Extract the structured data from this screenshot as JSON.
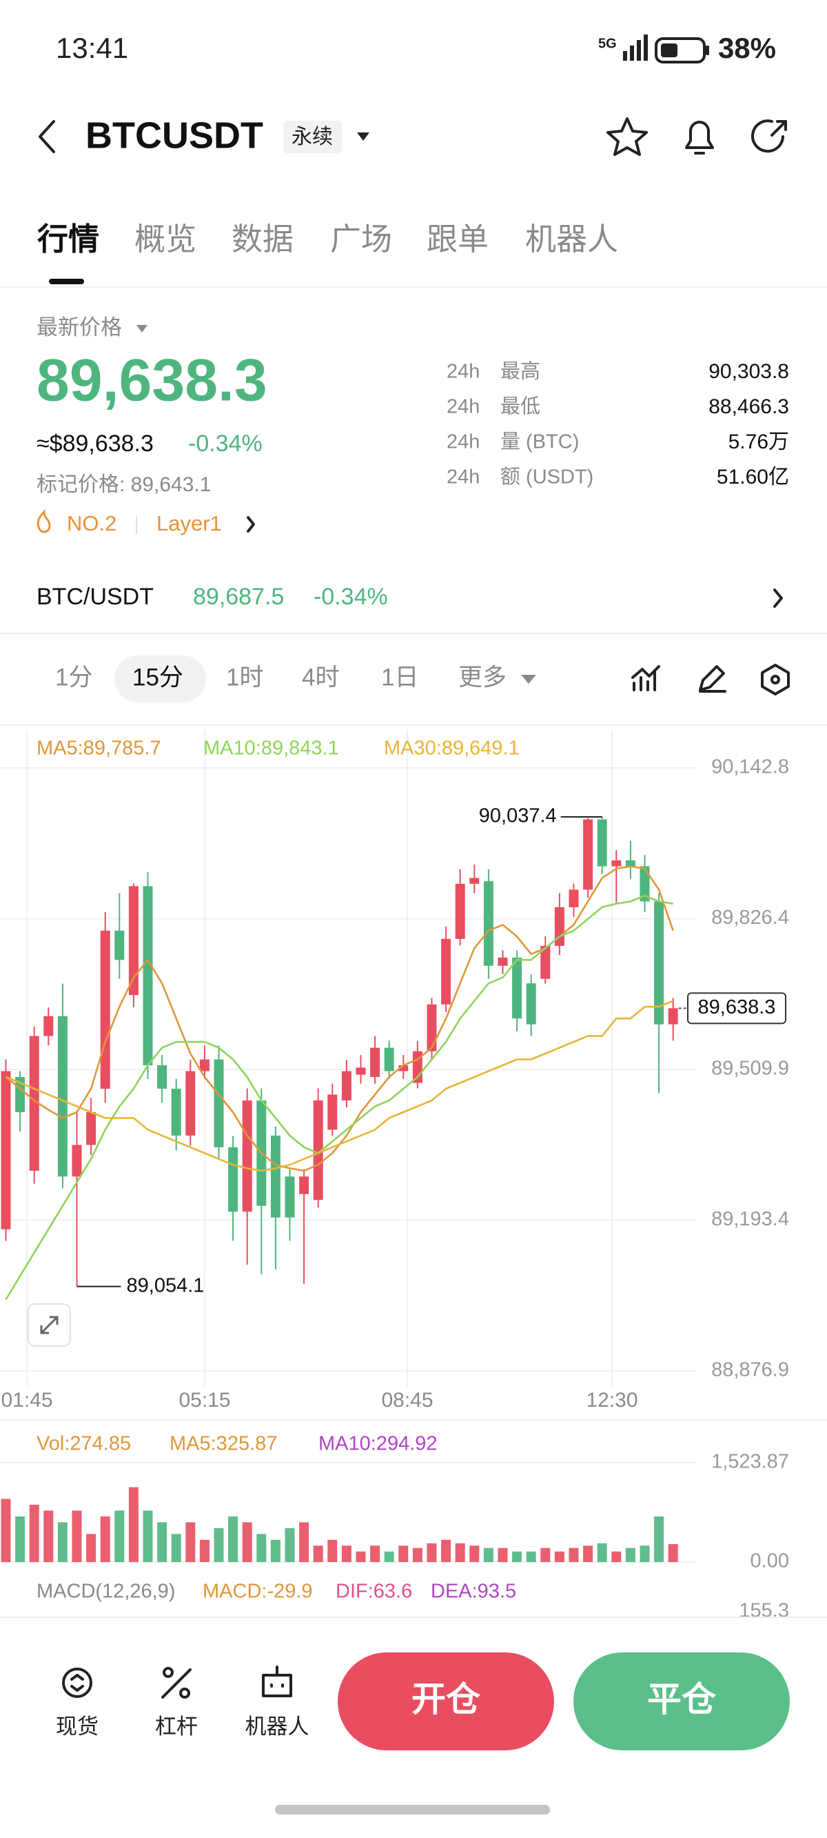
{
  "status_bar": {
    "time": "13:41",
    "battery": "38%"
  },
  "header": {
    "symbol": "BTCUSDT",
    "badge": "永续"
  },
  "tabs": [
    "行情",
    "概览",
    "数据",
    "广场",
    "跟单",
    "机器人"
  ],
  "price": {
    "label": "最新价格",
    "last": "89,638.3",
    "usd": "≈$89,638.3",
    "change": "-0.34%",
    "mark": "标记价格: 89,643.1",
    "rank": "NO.2",
    "tag": "Layer1"
  },
  "stats": [
    {
      "period": "24h",
      "label": "最高",
      "value": "90,303.8"
    },
    {
      "period": "24h",
      "label": "最低",
      "value": "88,466.3"
    },
    {
      "period": "24h",
      "label": "量 (BTC)",
      "value": "5.76万"
    },
    {
      "period": "24h",
      "label": "额 (USDT)",
      "value": "51.60亿"
    }
  ],
  "spot": {
    "pair": "BTC/USDT",
    "price": "89,687.5",
    "change": "-0.34%"
  },
  "intervals": [
    "1分",
    "15分",
    "1时",
    "4时",
    "1日",
    "更多"
  ],
  "chart_data": {
    "type": "candlestick",
    "up_color": "#e84e60",
    "down_color": "#4fb57f",
    "open": [
      89174.3,
      89493.9,
      89297.2,
      89579.9,
      89621.7,
      89285,
      89351.3,
      89469.3,
      89801.1,
      89665.9,
      89894.5,
      89518.5,
      89469.3,
      89371,
      89506.2,
      89530.8,
      89346.4,
      89211.2,
      89444.7,
      89371,
      89285,
      89248.1,
      89235.8,
      89383.3,
      89444.7,
      89498.8,
      89493.9,
      89555.3,
      89506.2,
      89481.6,
      89548,
      89646.3,
      89783.9,
      89899.5,
      89905,
      89727.4,
      89744.6,
      89690.5,
      89700,
      89769.2,
      89850.3,
      89887.2,
      90034.6,
      89936.3,
      89948.6,
      89936.3,
      89862.6,
      89604.5
    ],
    "high": [
      89530.8,
      89506.2,
      89600,
      89640,
      89690,
      89420,
      89450,
      89840,
      89880,
      89900,
      89924,
      89540,
      89490,
      89530,
      89560,
      89560,
      89370,
      89470,
      89470,
      89390,
      89300,
      89300,
      89470,
      89480,
      89530,
      89540,
      89580,
      89570,
      89540,
      89570,
      89660,
      89810,
      89930,
      89940,
      89930,
      89760,
      89760,
      89710,
      89790,
      89880,
      89900,
      90037.4,
      90040,
      89970,
      89990,
      89960,
      89880,
      89660
    ],
    "low": [
      89150,
      89380,
      89270,
      89560,
      89260,
      89054.1,
      89330,
      89440,
      89700,
      89640,
      89490,
      89440,
      89340,
      89350,
      89490,
      89320,
      89150,
      89100,
      89080,
      89090,
      89150,
      89060,
      89220,
      89370,
      89430,
      89480,
      89480,
      89490,
      89490,
      89470,
      89530,
      89630,
      89770,
      89880,
      89700,
      89710,
      89590,
      89580,
      89690,
      89750,
      89830,
      89870,
      89920,
      89860,
      89910,
      89840,
      89460,
      89570
    ],
    "close": [
      89506.2,
      89420.1,
      89579.9,
      89621.7,
      89285,
      89351.3,
      89420.1,
      89801.1,
      89739.7,
      89894.5,
      89518.5,
      89469.3,
      89371,
      89506.2,
      89530.8,
      89346.4,
      89211.2,
      89444.7,
      89223.5,
      89198.9,
      89198.9,
      89285,
      89444.7,
      89457,
      89506.2,
      89513.6,
      89555.3,
      89506.2,
      89518.5,
      89548,
      89646.3,
      89783.9,
      89899.5,
      89911.7,
      89727.4,
      89744.6,
      89616.8,
      89604.5,
      89769.2,
      89850.3,
      89887.2,
      90034.6,
      89936.3,
      89948.6,
      89936.3,
      89862.6,
      89604.5,
      89638.3
    ],
    "series": [
      {
        "name": "MA5:89,785.7",
        "color": "#e0963a",
        "values": [
          89493.9,
          89469.3,
          89444.7,
          89425,
          89407.9,
          89420.1,
          89469.3,
          89567.6,
          89641.4,
          89702.8,
          89739.7,
          89690.5,
          89616.8,
          89543,
          89493.9,
          89457,
          89420.1,
          89371,
          89334.1,
          89309.5,
          89302.1,
          89297.2,
          89309.5,
          89334.1,
          89371,
          89420.1,
          89457,
          89493.9,
          89518.5,
          89530.8,
          89555.3,
          89616.8,
          89690.5,
          89764.3,
          89801.1,
          89813.4,
          89788.8,
          89752,
          89764.3,
          89788.8,
          89813.4,
          89862.6,
          89911.7,
          89931.4,
          89936.3,
          89931.4,
          89887.2,
          89801.1
        ]
      },
      {
        "name": "MA10:89,843.1",
        "color": "#8fd45a",
        "values": [
          89026.7,
          89076,
          89125.2,
          89174.3,
          89223.5,
          89272.7,
          89321.8,
          89383.3,
          89432.4,
          89469.3,
          89518.5,
          89555.3,
          89567.6,
          89567.6,
          89567.6,
          89555.3,
          89530.8,
          89493.9,
          89444.7,
          89407.9,
          89371,
          89346.4,
          89334.1,
          89358.7,
          89383.3,
          89407.9,
          89432.4,
          89444.7,
          89469.3,
          89493.9,
          89530.8,
          89567.6,
          89616.8,
          89653.7,
          89690.5,
          89702.8,
          89739.7,
          89739.7,
          89764.3,
          89788.8,
          89801.1,
          89825.7,
          89850.3,
          89857.7,
          89862.6,
          89874.9,
          89862.6,
          89857.7
        ]
      },
      {
        "name": "MA30:89,649.1",
        "color": "#e8b535",
        "values": [
          89493.9,
          89481.6,
          89469.3,
          89457,
          89444.7,
          89432.4,
          89420.1,
          89407.9,
          89407.9,
          89407.9,
          89383.3,
          89371,
          89358.7,
          89346.4,
          89334.1,
          89321.8,
          89309.5,
          89302.1,
          89297.2,
          89302.1,
          89309.5,
          89321.8,
          89334.1,
          89346.4,
          89358.7,
          89371,
          89383.3,
          89407.9,
          89420.1,
          89432.4,
          89444.7,
          89469.3,
          89481.6,
          89493.9,
          89506.2,
          89518.5,
          89530.8,
          89530.8,
          89543,
          89555.3,
          89567.6,
          89579.9,
          89579.9,
          89616.8,
          89616.8,
          89641.4,
          89641.4,
          89653.7
        ]
      }
    ],
    "ylim": [
      88876.9,
      90142.8
    ],
    "yticks": [
      {
        "value": 90142.8,
        "label": "90,142.8"
      },
      {
        "value": 89826.4,
        "label": "89,826.4"
      },
      {
        "value": 89509.9,
        "label": "89,509.9"
      },
      {
        "value": 89193.4,
        "label": "89,193.4"
      },
      {
        "value": 88876.9,
        "label": "88,876.9"
      }
    ],
    "x_labels": [
      "01:45",
      "05:15",
      "08:45",
      "12:30"
    ],
    "annotations": {
      "high": "90,037.4",
      "low": "89,054.1",
      "last": "89,638.3"
    },
    "volume": {
      "legend": [
        {
          "name": "Vol:274.85",
          "color": "#e0963a"
        },
        {
          "name": "MA5:325.87",
          "color": "#e0963a"
        },
        {
          "name": "MA10:294.92",
          "color": "#b046c4"
        }
      ],
      "values": [
        968.2,
        699.3,
        878.6,
        788.9,
        609.6,
        788.9,
        430.3,
        699.3,
        788.9,
        1147.5,
        788.9,
        609.6,
        430.3,
        609.6,
        340.7,
        520,
        699.3,
        609.6,
        430.3,
        340.7,
        520,
        609.6,
        251,
        340.7,
        251,
        161.4,
        251,
        161.4,
        251,
        215.2,
        286.9,
        340.7,
        286.9,
        251,
        215.2,
        215.2,
        161.4,
        161.4,
        215.2,
        161.4,
        215.2,
        251,
        286.9,
        161.4,
        215.2,
        251,
        699.3,
        274.85
      ],
      "ylim": [
        0,
        1523.87
      ],
      "yticks": [
        {
          "value": 0,
          "label": "0.00"
        },
        {
          "value": 1523.87,
          "label": "1,523.87"
        }
      ]
    }
  },
  "macd": {
    "legend": [
      {
        "name": "MACD(12,26,9)",
        "color": "#888888"
      },
      {
        "name": "MACD:-29.9",
        "color": "#e0963a"
      },
      {
        "name": "DIF:63.6",
        "color": "#e0508c"
      },
      {
        "name": "DEA:93.5",
        "color": "#b046c4"
      }
    ],
    "tick": "155.3"
  },
  "bottom": {
    "nav": [
      "现货",
      "杠杆",
      "机器人"
    ],
    "buttons": [
      "开仓",
      "平仓"
    ]
  }
}
